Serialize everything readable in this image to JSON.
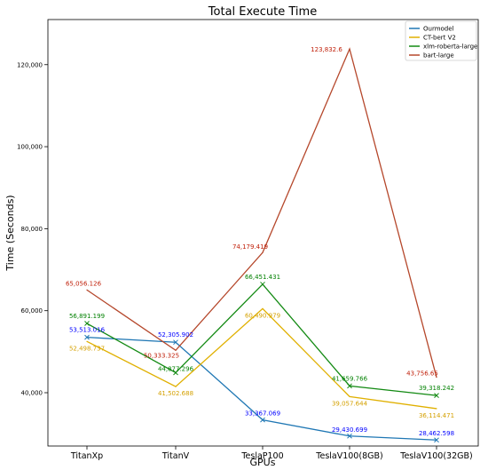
{
  "chart_data": {
    "type": "line",
    "title": "Total Execute Time",
    "xlabel": "GPUs",
    "ylabel": "Time (Seconds)",
    "categories": [
      "TitanXp",
      "TitanV",
      "TeslaP100",
      "TeslaV100(8GB)",
      "TeslaV100(32GB)"
    ],
    "ylim": [
      27000,
      131000
    ],
    "yticks": [
      40000,
      60000,
      80000,
      100000,
      120000
    ],
    "ytick_labels": [
      "40,000",
      "60,000",
      "80,000",
      "100,000",
      "120,000"
    ],
    "legend_position": "top-right",
    "grid": false,
    "series": [
      {
        "name": "Ourmodel",
        "color": "#1f77b4",
        "label_color": "#0000ff",
        "marker": "x",
        "values": [
          53513.016,
          52305.902,
          33367.069,
          29430.699,
          28462.598
        ],
        "labels": [
          "53,513.016",
          "52,305.902",
          "33,367.069",
          "29,430.699",
          "28,462.598"
        ]
      },
      {
        "name": "CT-bert V2",
        "color": "#e0b000",
        "label_color": "#d4a000",
        "marker": "",
        "values": [
          52498.737,
          41502.688,
          60490.979,
          39057.644,
          36114.471
        ],
        "labels": [
          "52,498.737",
          "41,502.688",
          "60,490.979",
          "39,057.644",
          "36,114.471"
        ]
      },
      {
        "name": "xlm-roberta-large",
        "color": "#138a13",
        "label_color": "#008000",
        "marker": "x",
        "values": [
          56891.199,
          44877.296,
          66451.431,
          41659.766,
          39318.242
        ],
        "labels": [
          "56,891.199",
          "44,877.296",
          "66,451.431",
          "41,659.766",
          "39,318.242"
        ]
      },
      {
        "name": "bart-large",
        "color": "#b5472b",
        "label_color": "#c0200a",
        "marker": "",
        "values": [
          65056.126,
          50333.325,
          74179.419,
          123832.6,
          43756.65
        ],
        "labels": [
          "65,056.126",
          "50,333.325",
          "74,179.419",
          "123,832.6",
          "43,756.65"
        ]
      }
    ]
  }
}
